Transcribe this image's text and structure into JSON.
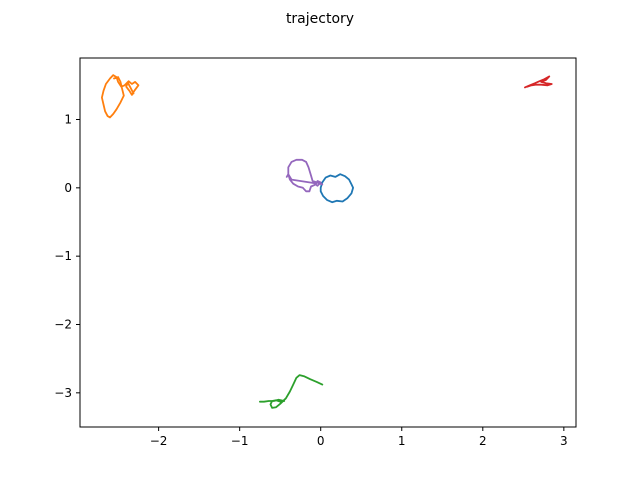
{
  "chart_data": {
    "type": "line",
    "title": "trajectory",
    "xlabel": "",
    "ylabel": "",
    "xlim": [
      -2.97,
      3.15
    ],
    "ylim": [
      -3.5,
      1.9
    ],
    "xticks": [
      -2,
      -1,
      0,
      1,
      2,
      3
    ],
    "xtick_labels": [
      "−2",
      "−1",
      "0",
      "1",
      "2",
      "3"
    ],
    "yticks": [
      -3,
      -2,
      -1,
      0,
      1
    ],
    "ytick_labels": [
      "−3",
      "−2",
      "−1",
      "0",
      "1"
    ],
    "grid": false,
    "legend": false,
    "series": [
      {
        "color": "#1f77b4",
        "points": [
          [
            0.0,
            0.0
          ],
          [
            0.02,
            0.08
          ],
          [
            0.06,
            0.15
          ],
          [
            0.12,
            0.18
          ],
          [
            0.18,
            0.16
          ],
          [
            0.24,
            0.2
          ],
          [
            0.3,
            0.17
          ],
          [
            0.35,
            0.12
          ],
          [
            0.38,
            0.05
          ],
          [
            0.4,
            0.0
          ],
          [
            0.38,
            -0.08
          ],
          [
            0.33,
            -0.15
          ],
          [
            0.27,
            -0.2
          ],
          [
            0.2,
            -0.19
          ],
          [
            0.14,
            -0.21
          ],
          [
            0.08,
            -0.18
          ],
          [
            0.03,
            -0.12
          ],
          [
            0.0,
            -0.05
          ],
          [
            0.0,
            0.0
          ]
        ]
      },
      {
        "color": "#ff7f0e",
        "points": [
          [
            -2.55,
            1.6
          ],
          [
            -2.5,
            1.62
          ],
          [
            -2.47,
            1.55
          ],
          [
            -2.45,
            1.45
          ],
          [
            -2.43,
            1.35
          ],
          [
            -2.47,
            1.25
          ],
          [
            -2.52,
            1.15
          ],
          [
            -2.56,
            1.08
          ],
          [
            -2.6,
            1.03
          ],
          [
            -2.63,
            1.05
          ],
          [
            -2.66,
            1.12
          ],
          [
            -2.68,
            1.22
          ],
          [
            -2.7,
            1.32
          ],
          [
            -2.68,
            1.42
          ],
          [
            -2.65,
            1.52
          ],
          [
            -2.6,
            1.6
          ],
          [
            -2.56,
            1.65
          ],
          [
            -2.52,
            1.62
          ],
          [
            -2.5,
            1.55
          ],
          [
            -2.46,
            1.48
          ],
          [
            -2.42,
            1.5
          ],
          [
            -2.37,
            1.56
          ],
          [
            -2.33,
            1.52
          ],
          [
            -2.29,
            1.55
          ],
          [
            -2.25,
            1.5
          ],
          [
            -2.3,
            1.42
          ],
          [
            -2.33,
            1.36
          ],
          [
            -2.36,
            1.42
          ],
          [
            -2.4,
            1.48
          ],
          [
            -2.38,
            1.54
          ],
          [
            -2.34,
            1.45
          ],
          [
            -2.31,
            1.38
          ]
        ]
      },
      {
        "color": "#2ca02c",
        "points": [
          [
            0.02,
            -2.88
          ],
          [
            -0.05,
            -2.84
          ],
          [
            -0.13,
            -2.8
          ],
          [
            -0.2,
            -2.76
          ],
          [
            -0.26,
            -2.74
          ],
          [
            -0.3,
            -2.78
          ],
          [
            -0.34,
            -2.88
          ],
          [
            -0.38,
            -2.98
          ],
          [
            -0.43,
            -3.08
          ],
          [
            -0.5,
            -3.16
          ],
          [
            -0.55,
            -3.21
          ],
          [
            -0.6,
            -3.22
          ],
          [
            -0.62,
            -3.17
          ],
          [
            -0.6,
            -3.12
          ],
          [
            -0.55,
            -3.11
          ],
          [
            -0.5,
            -3.13
          ],
          [
            -0.45,
            -3.12
          ],
          [
            -0.52,
            -3.1
          ],
          [
            -0.58,
            -3.12
          ],
          [
            -0.64,
            -3.12
          ],
          [
            -0.7,
            -3.13
          ],
          [
            -0.75,
            -3.13
          ]
        ]
      },
      {
        "color": "#d62728",
        "points": [
          [
            2.52,
            1.47
          ],
          [
            2.58,
            1.5
          ],
          [
            2.64,
            1.53
          ],
          [
            2.7,
            1.56
          ],
          [
            2.76,
            1.59
          ],
          [
            2.82,
            1.63
          ],
          [
            2.78,
            1.58
          ],
          [
            2.72,
            1.55
          ],
          [
            2.78,
            1.53
          ],
          [
            2.85,
            1.52
          ],
          [
            2.8,
            1.5
          ],
          [
            2.72,
            1.51
          ],
          [
            2.65,
            1.51
          ],
          [
            2.6,
            1.5
          ],
          [
            2.55,
            1.48
          ]
        ]
      },
      {
        "color": "#9467bd",
        "points": [
          [
            0.02,
            0.05
          ],
          [
            -0.05,
            0.08
          ],
          [
            -0.1,
            0.1
          ],
          [
            -0.12,
            0.18
          ],
          [
            -0.15,
            0.3
          ],
          [
            -0.18,
            0.38
          ],
          [
            -0.23,
            0.41
          ],
          [
            -0.3,
            0.41
          ],
          [
            -0.36,
            0.38
          ],
          [
            -0.4,
            0.3
          ],
          [
            -0.4,
            0.2
          ],
          [
            -0.38,
            0.12
          ],
          [
            -0.34,
            0.06
          ],
          [
            -0.28,
            0.02
          ],
          [
            -0.22,
            0.0
          ],
          [
            -0.18,
            -0.05
          ],
          [
            -0.14,
            -0.05
          ],
          [
            -0.12,
            0.02
          ],
          [
            -0.06,
            0.05
          ],
          [
            -0.04,
            0.1
          ],
          [
            0.0,
            0.08
          ],
          [
            -0.04,
            0.03
          ],
          [
            -0.08,
            0.07
          ],
          [
            -0.36,
            0.12
          ],
          [
            -0.4,
            0.2
          ],
          [
            -0.42,
            0.16
          ]
        ]
      }
    ]
  }
}
